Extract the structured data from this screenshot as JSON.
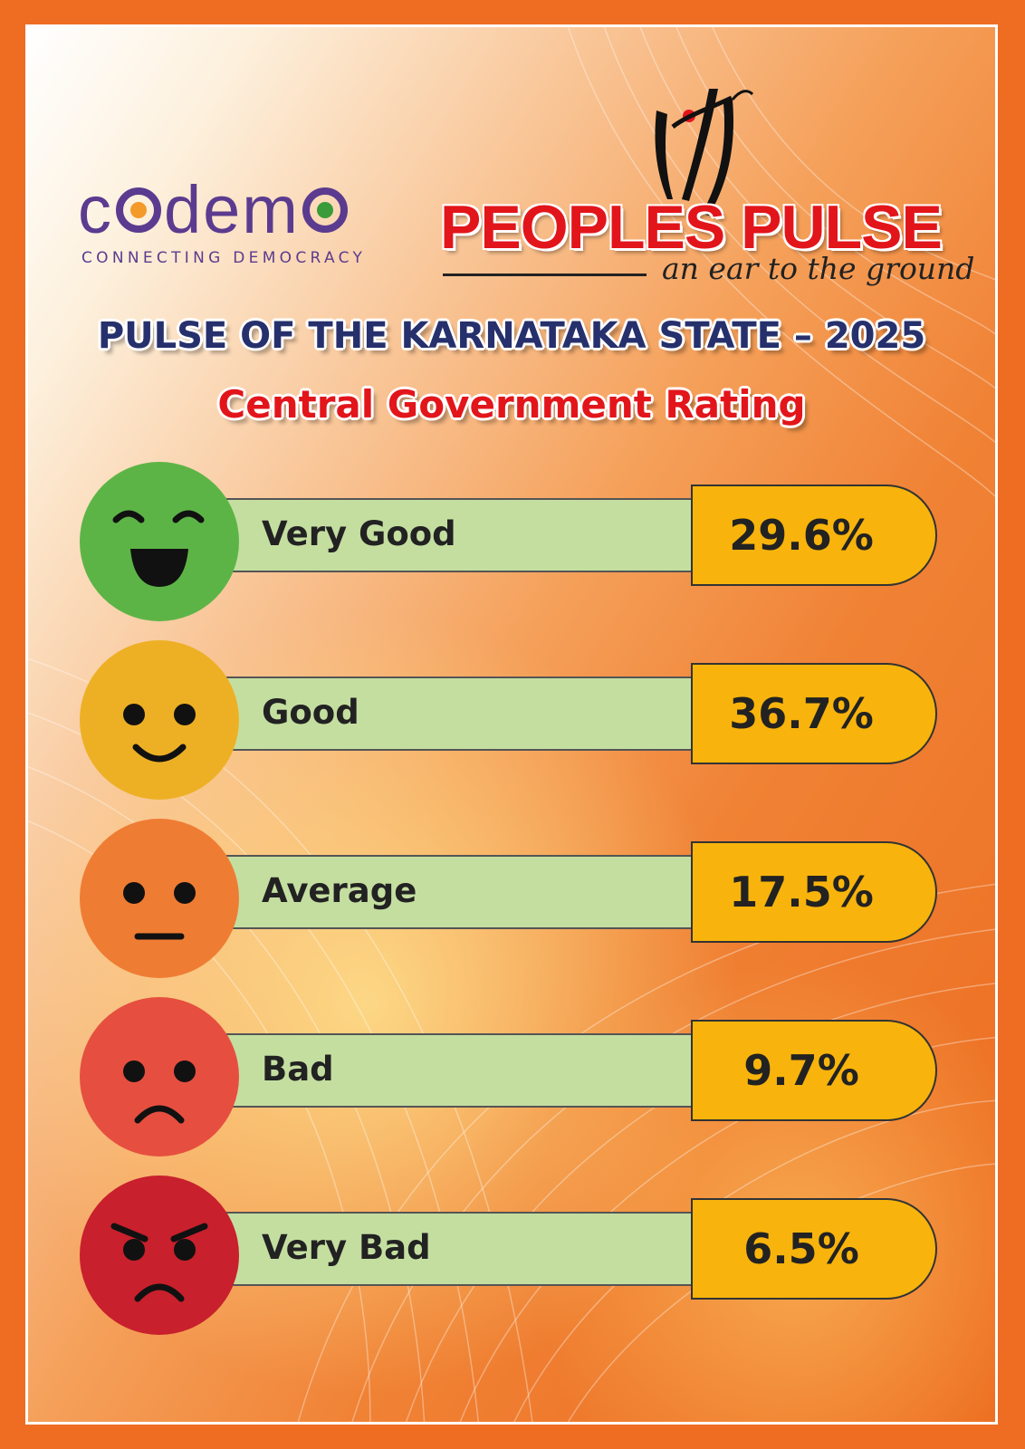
{
  "branding": {
    "codemo_name": "codemo",
    "codemo_tagline": "CONNECTING DEMOCRACY",
    "peoples_pulse_name": "PEOPLES PULSE",
    "peoples_pulse_tagline": "an ear to the ground"
  },
  "title": "PULSE OF THE KARNATAKA STATE – 2025",
  "subtitle": "Central Government Rating",
  "chart_data": {
    "type": "table",
    "title": "Central Government Rating",
    "categories": [
      "Very Good",
      "Good",
      "Average",
      "Bad",
      "Very Bad"
    ],
    "values": [
      29.6,
      36.7,
      17.5,
      9.7,
      6.5
    ],
    "unit": "%",
    "rows": [
      {
        "label": "Very Good",
        "value_text": "29.6%",
        "value": 29.6,
        "face": "laughing-face-icon",
        "color": "#5db446"
      },
      {
        "label": "Good",
        "value_text": "36.7%",
        "value": 36.7,
        "face": "smiling-face-icon",
        "color": "#edb025"
      },
      {
        "label": "Average",
        "value_text": "17.5%",
        "value": 17.5,
        "face": "neutral-face-icon",
        "color": "#ef7c33"
      },
      {
        "label": "Bad",
        "value_text": "9.7%",
        "value": 9.7,
        "face": "sad-face-icon",
        "color": "#e64f3f"
      },
      {
        "label": "Very Bad",
        "value_text": "6.5%",
        "value": 6.5,
        "face": "angry-face-icon",
        "color": "#c8202c"
      }
    ]
  },
  "colors": {
    "bar_fill": "#c4dea0",
    "value_fill": "#f8b40c",
    "title_color": "#26306c",
    "subtitle_color": "#e2151b",
    "brand_purple": "#5b3b8f",
    "border_orange": "#ee6d22"
  }
}
